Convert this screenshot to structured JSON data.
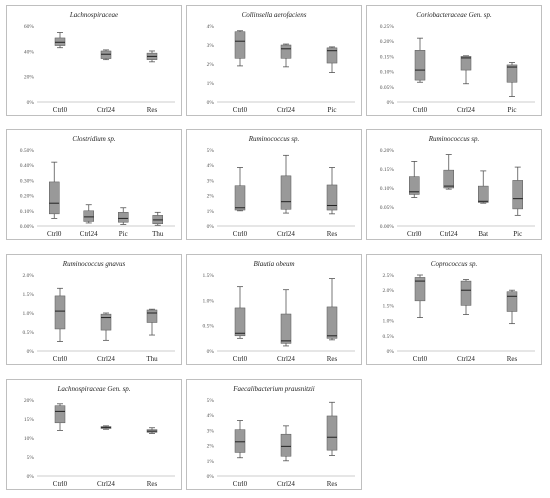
{
  "chart_data": [
    {
      "type": "box",
      "title": "Lachnospiraceae",
      "yticks": [
        "0%",
        "20%",
        "40%",
        "60%"
      ],
      "ylim": [
        0,
        70
      ],
      "categories": [
        "Ctrl0",
        "Ctrl24",
        "Res"
      ],
      "boxes": [
        {
          "min": 50,
          "q1": 52,
          "median": 55,
          "q3": 59,
          "max": 64
        },
        {
          "min": 39,
          "q1": 40,
          "median": 44,
          "q3": 47,
          "max": 48
        },
        {
          "min": 37,
          "q1": 39,
          "median": 42,
          "q3": 45,
          "max": 47
        }
      ]
    },
    {
      "type": "box",
      "title": "Collinsella aerofaciens",
      "yticks": [
        "0%",
        "1%",
        "2%",
        "3%",
        "4%"
      ],
      "ylim": [
        0,
        4
      ],
      "categories": [
        "Ctrl0",
        "Ctrl24",
        "Pic"
      ],
      "boxes": [
        {
          "min": 1.9,
          "q1": 2.3,
          "median": 3.2,
          "q3": 3.7,
          "max": 3.75
        },
        {
          "min": 1.85,
          "q1": 2.3,
          "median": 2.8,
          "q3": 3.0,
          "max": 3.05
        },
        {
          "min": 1.55,
          "q1": 2.05,
          "median": 2.7,
          "q3": 2.85,
          "max": 2.9
        }
      ]
    },
    {
      "type": "box",
      "title": "Coriobacteraceae Gen. sp.",
      "yticks": [
        "0%",
        "0.05%",
        "0.10%",
        "0.15%",
        "0.20%",
        "0.25%"
      ],
      "ylim": [
        0,
        0.25
      ],
      "categories": [
        "Ctrl0",
        "Ctrl24",
        "Pic"
      ],
      "boxes": [
        {
          "min": 0.065,
          "q1": 0.072,
          "median": 0.105,
          "q3": 0.17,
          "max": 0.21
        },
        {
          "min": 0.06,
          "q1": 0.105,
          "median": 0.145,
          "q3": 0.15,
          "max": 0.152
        },
        {
          "min": 0.018,
          "q1": 0.065,
          "median": 0.115,
          "q3": 0.122,
          "max": 0.13
        }
      ]
    },
    {
      "type": "box",
      "title": "Clostridium sp.",
      "yticks": [
        "0.00%",
        "0.10%",
        "0.20%",
        "0.30%",
        "0.40%",
        "0.50%"
      ],
      "ylim": [
        0,
        0.5
      ],
      "categories": [
        "Ctrl0",
        "Ctrl24",
        "Pic",
        "Thu"
      ],
      "boxes": [
        {
          "min": 0.05,
          "q1": 0.08,
          "median": 0.15,
          "q3": 0.29,
          "max": 0.42
        },
        {
          "min": 0.02,
          "q1": 0.03,
          "median": 0.06,
          "q3": 0.1,
          "max": 0.14
        },
        {
          "min": 0.01,
          "q1": 0.025,
          "median": 0.05,
          "q3": 0.09,
          "max": 0.12
        },
        {
          "min": 0.005,
          "q1": 0.015,
          "median": 0.04,
          "q3": 0.07,
          "max": 0.09
        }
      ]
    },
    {
      "type": "box",
      "title": "Ruminococcus sp.",
      "yticks": [
        "0%",
        "1%",
        "2%",
        "3%",
        "4%",
        "5%"
      ],
      "ylim": [
        0,
        5
      ],
      "categories": [
        "Ctrl0",
        "Ctrl24",
        "Res"
      ],
      "boxes": [
        {
          "min": 1.0,
          "q1": 1.05,
          "median": 1.2,
          "q3": 2.65,
          "max": 3.85
        },
        {
          "min": 0.85,
          "q1": 1.1,
          "median": 1.6,
          "q3": 3.3,
          "max": 4.65
        },
        {
          "min": 0.8,
          "q1": 1.05,
          "median": 1.35,
          "q3": 2.7,
          "max": 3.85
        }
      ]
    },
    {
      "type": "box",
      "title": "Ruminococcus sp.",
      "yticks": [
        "0.00%",
        "0.05%",
        "0.10%",
        "0.15%",
        "0.20%"
      ],
      "ylim": [
        0,
        0.2
      ],
      "categories": [
        "Ctrl0",
        "Ctrl24",
        "Bat",
        "Pic"
      ],
      "boxes": [
        {
          "min": 0.075,
          "q1": 0.083,
          "median": 0.09,
          "q3": 0.13,
          "max": 0.17
        },
        {
          "min": 0.097,
          "q1": 0.1,
          "median": 0.105,
          "q3": 0.147,
          "max": 0.188
        },
        {
          "min": 0.06,
          "q1": 0.062,
          "median": 0.065,
          "q3": 0.105,
          "max": 0.145
        },
        {
          "min": 0.028,
          "q1": 0.045,
          "median": 0.072,
          "q3": 0.12,
          "max": 0.155
        }
      ]
    },
    {
      "type": "box",
      "title": "Ruminococcus gnavus",
      "yticks": [
        "0%",
        "0.5%",
        "1.0%",
        "1.5%",
        "2.0%"
      ],
      "ylim": [
        0,
        2
      ],
      "categories": [
        "Ctrl0",
        "Ctrl24",
        "Thu"
      ],
      "boxes": [
        {
          "min": 0.25,
          "q1": 0.58,
          "median": 1.05,
          "q3": 1.45,
          "max": 1.65
        },
        {
          "min": 0.28,
          "q1": 0.55,
          "median": 0.88,
          "q3": 0.97,
          "max": 1.0
        },
        {
          "min": 0.42,
          "q1": 0.75,
          "median": 1.0,
          "q3": 1.08,
          "max": 1.1
        }
      ]
    },
    {
      "type": "box",
      "title": "Blautia obeum",
      "yticks": [
        "0%",
        "0.5%",
        "1.0%",
        "1.5%"
      ],
      "ylim": [
        0,
        1.5
      ],
      "categories": [
        "Ctrl0",
        "Ctrl24",
        "Res"
      ],
      "boxes": [
        {
          "min": 0.25,
          "q1": 0.3,
          "median": 0.35,
          "q3": 0.85,
          "max": 1.27
        },
        {
          "min": 0.1,
          "q1": 0.15,
          "median": 0.2,
          "q3": 0.73,
          "max": 1.21
        },
        {
          "min": 0.22,
          "q1": 0.25,
          "median": 0.3,
          "q3": 0.87,
          "max": 1.43
        }
      ]
    },
    {
      "type": "box",
      "title": "Coprococcus sp.",
      "yticks": [
        "0%",
        "0.5%",
        "1.0%",
        "1.5%",
        "2.0%",
        "2.5%"
      ],
      "ylim": [
        0,
        2.5
      ],
      "categories": [
        "Ctrl0",
        "Ctrl24",
        "Res"
      ],
      "boxes": [
        {
          "min": 1.1,
          "q1": 1.65,
          "median": 2.3,
          "q3": 2.42,
          "max": 2.5
        },
        {
          "min": 1.2,
          "q1": 1.5,
          "median": 2.0,
          "q3": 2.3,
          "max": 2.35
        },
        {
          "min": 0.9,
          "q1": 1.3,
          "median": 1.8,
          "q3": 1.95,
          "max": 2.0
        }
      ]
    },
    {
      "type": "box",
      "title": "Lachnospiraceae Gen. sp.",
      "yticks": [
        "0%",
        "5%",
        "10%",
        "15%",
        "20%"
      ],
      "ylim": [
        0,
        20
      ],
      "categories": [
        "Ctrl0",
        "Ctrl24",
        "Res"
      ],
      "boxes": [
        {
          "min": 12,
          "q1": 14,
          "median": 17,
          "q3": 18.5,
          "max": 19
        },
        {
          "min": 12.3,
          "q1": 12.5,
          "median": 12.8,
          "q3": 13,
          "max": 13.2
        },
        {
          "min": 11.2,
          "q1": 11.5,
          "median": 11.8,
          "q3": 12.2,
          "max": 12.7
        }
      ]
    },
    {
      "type": "box",
      "title": "Faecalibacterium prausnitzii",
      "yticks": [
        "0%",
        "1%",
        "2%",
        "3%",
        "4%",
        "5%"
      ],
      "ylim": [
        0,
        5
      ],
      "categories": [
        "Ctrl0",
        "Ctrl24",
        "Res"
      ],
      "boxes": [
        {
          "min": 1.2,
          "q1": 1.55,
          "median": 2.25,
          "q3": 3.05,
          "max": 3.65
        },
        {
          "min": 1.0,
          "q1": 1.3,
          "median": 1.95,
          "q3": 2.75,
          "max": 3.3
        },
        {
          "min": 1.35,
          "q1": 1.7,
          "median": 2.55,
          "q3": 3.95,
          "max": 4.85
        }
      ]
    }
  ],
  "colors": {
    "box": "#999999",
    "box_stroke": "#555555",
    "whisker": "#555555",
    "median": "#222222",
    "panel_border": "#bfbfbf"
  }
}
